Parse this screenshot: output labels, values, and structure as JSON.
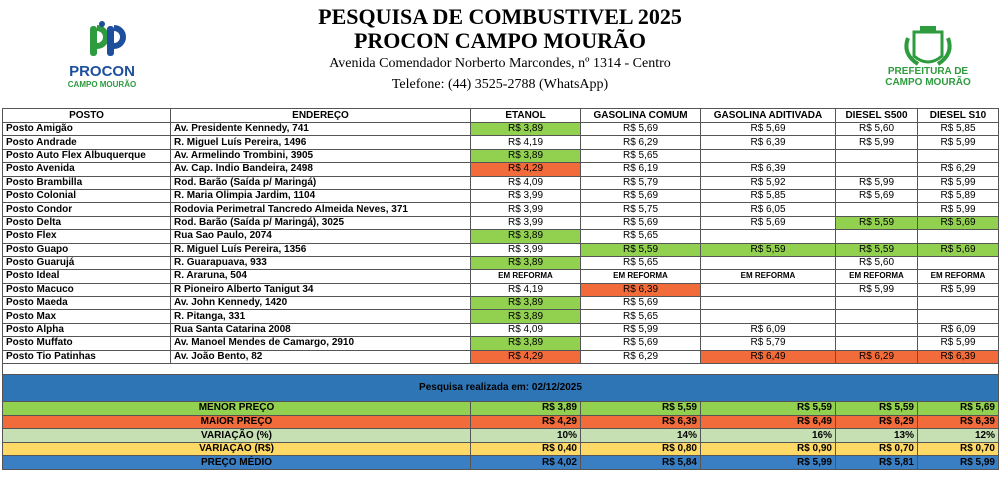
{
  "header": {
    "title": "PESQUISA DE COMBUSTIVEL 2025",
    "subtitle": "PROCON CAMPO MOURÃO",
    "address": "Avenida Comendador Norberto Marcondes, nº 1314 - Centro",
    "phone": "Telefone: (44) 3525-2788 (WhatsApp)"
  },
  "logos": {
    "procon": [
      "PROCON",
      "CAMPO MOURÃO"
    ],
    "prefeitura": [
      "PREFEITURA DE",
      "CAMPO MOURÃO"
    ]
  },
  "table": {
    "columns": [
      "POSTO",
      "ENDEREÇO",
      "ETANOL",
      "GASOLINA COMUM",
      "GASOLINA ADITIVADA",
      "DIESEL S500",
      "DIESEL S10"
    ],
    "rows": [
      {
        "posto": "Posto Amigão",
        "endereco": "Av. Presidente Kennedy, 741",
        "precos": [
          "R$ 3,89",
          "R$ 5,69",
          "R$ 5,69",
          "R$ 5,60",
          "R$ 5,85"
        ],
        "cores": [
          "#92d050",
          null,
          null,
          null,
          null
        ]
      },
      {
        "posto": "Posto Andrade",
        "endereco": "R. Miguel Luís Pereira, 1496",
        "precos": [
          "R$ 4,19",
          "R$ 6,29",
          "R$ 6,39",
          "R$ 5,99",
          "R$ 5,99"
        ],
        "cores": [
          null,
          null,
          null,
          null,
          null
        ]
      },
      {
        "posto": "Posto Auto Flex Albuquerque",
        "endereco": "Av. Armelindo Trombini, 3905",
        "precos": [
          "R$ 3,89",
          "R$ 5,65",
          null,
          null,
          null
        ],
        "cores": [
          "#92d050",
          null,
          null,
          null,
          null
        ]
      },
      {
        "posto": "Posto Avenida",
        "endereco": "Av. Cap. Índio Bandeira, 2498",
        "precos": [
          "R$ 4,29",
          "R$ 6,19",
          "R$ 6,39",
          null,
          "R$ 6,29"
        ],
        "cores": [
          "#f26b3a",
          null,
          null,
          null,
          null
        ]
      },
      {
        "posto": "Posto Brambilla",
        "endereco": "Rod. Barão (Saída p/ Maringá)",
        "precos": [
          "R$ 4,09",
          "R$ 5,79",
          "R$ 5,92",
          "R$ 5,99",
          "R$ 5,99"
        ],
        "cores": [
          null,
          null,
          null,
          null,
          null
        ]
      },
      {
        "posto": "Posto Colonial",
        "endereco": "R. Maria Olimpia Jardim, 1104",
        "precos": [
          "R$ 3,99",
          "R$ 5,69",
          "R$ 5,85",
          "R$ 5,69",
          "R$ 5,89"
        ],
        "cores": [
          null,
          null,
          null,
          null,
          null
        ]
      },
      {
        "posto": "Posto Condor",
        "endereco": "Rodovia Perimetral Tancredo Almeida Neves, 371",
        "precos": [
          "R$ 3,99",
          "R$ 5,75",
          "R$ 6,05",
          null,
          "R$ 5,99"
        ],
        "cores": [
          null,
          null,
          null,
          null,
          null
        ]
      },
      {
        "posto": "Posto Delta",
        "endereco": "Rod. Barão (Saída p/ Maringá), 3025",
        "precos": [
          "R$ 3,99",
          "R$ 5,69",
          "R$ 5,69",
          "R$ 5,59",
          "R$ 5,69"
        ],
        "cores": [
          null,
          null,
          null,
          "#92d050",
          "#92d050"
        ]
      },
      {
        "posto": "Posto Flex",
        "endereco": "Rua Sao Paulo, 2074",
        "precos": [
          "R$ 3,89",
          "R$ 5,65",
          null,
          null,
          null
        ],
        "cores": [
          "#92d050",
          null,
          null,
          null,
          null
        ]
      },
      {
        "posto": "Posto Guapo",
        "endereco": "R. Miguel Luís Pereira, 1356",
        "precos": [
          "R$ 3,99",
          "R$ 5,59",
          "R$ 5,59",
          "R$ 5,59",
          "R$ 5,69"
        ],
        "cores": [
          null,
          "#92d050",
          "#92d050",
          "#92d050",
          "#92d050"
        ]
      },
      {
        "posto": "Posto Guarujá",
        "endereco": "R. Guarapuava, 933",
        "precos": [
          "R$ 3,89",
          "R$ 5,65",
          null,
          "R$ 5,60",
          null
        ],
        "cores": [
          "#92d050",
          null,
          null,
          null,
          null
        ]
      },
      {
        "posto": "Posto Ideal",
        "endereco": "R. Araruna, 504",
        "precos": [
          "EM REFORMA",
          "EM REFORMA",
          "EM REFORMA",
          "EM REFORMA",
          "EM REFORMA"
        ],
        "cores": [
          null,
          null,
          null,
          null,
          null
        ]
      },
      {
        "posto": "Posto Macuco",
        "endereco": "R Pioneiro Alberto Tanigut 34",
        "precos": [
          "R$ 4,19",
          "R$ 6,39",
          null,
          "R$ 5,99",
          "R$ 5,99"
        ],
        "cores": [
          null,
          "#f26b3a",
          null,
          null,
          null
        ]
      },
      {
        "posto": "Posto Maeda",
        "endereco": "Av. John Kennedy, 1420",
        "precos": [
          "R$ 3,89",
          "R$ 5,69",
          null,
          null,
          null
        ],
        "cores": [
          "#92d050",
          null,
          null,
          null,
          null
        ]
      },
      {
        "posto": "Posto Max",
        "endereco": "R. Pitanga, 331",
        "precos": [
          "R$ 3,89",
          "R$ 5,65",
          null,
          null,
          null
        ],
        "cores": [
          "#92d050",
          null,
          null,
          null,
          null
        ]
      },
      {
        "posto": "Posto Alpha",
        "endereco": "Rua Santa Catarina 2008",
        "precos": [
          "R$ 4,09",
          "R$ 5,99",
          "R$ 6,09",
          null,
          "R$ 6,09"
        ],
        "cores": [
          null,
          null,
          null,
          null,
          null
        ]
      },
      {
        "posto": "Posto Muffato",
        "endereco": "Av. Manoel Mendes de Camargo, 2910",
        "precos": [
          "R$ 3,89",
          "R$ 5,69",
          "R$ 5,79",
          null,
          "R$ 5,99"
        ],
        "cores": [
          "#92d050",
          null,
          null,
          null,
          null
        ]
      },
      {
        "posto": "Posto Tio Patinhas",
        "endereco": "Av. João Bento, 82",
        "precos": [
          "R$ 4,29",
          "R$ 6,29",
          "R$ 6,49",
          "R$ 6,29",
          "R$ 6,39"
        ],
        "cores": [
          "#f26b3a",
          null,
          "#f26b3a",
          "#f26b3a",
          "#f26b3a"
        ]
      }
    ],
    "note": "Pesquisa realizada em: 02/12/2025",
    "summary": [
      {
        "label": "MENOR PREÇO",
        "color": "#92d050",
        "values": [
          "R$ 3,89",
          "R$ 5,59",
          "R$ 5,59",
          "R$ 5,59",
          "R$ 5,69"
        ]
      },
      {
        "label": "MAIOR PREÇO",
        "color": "#f26b3a",
        "values": [
          "R$ 4,29",
          "R$ 6,39",
          "R$ 6,49",
          "R$ 6,29",
          "R$ 6,39"
        ]
      },
      {
        "label": "VARIAÇÃO (%)",
        "color": "#c6e0b4",
        "values": [
          "10%",
          "14%",
          "16%",
          "13%",
          "12%"
        ]
      },
      {
        "label": "VARIAÇÃO (R$)",
        "color": "#ffd966",
        "values": [
          "R$ 0,40",
          "R$ 0,80",
          "R$ 0,90",
          "R$ 0,70",
          "R$ 0,70"
        ]
      },
      {
        "label": "PREÇO MÉDIO",
        "color": "#3a7fc4",
        "values": [
          "R$ 4,02",
          "R$ 5,84",
          "R$ 5,99",
          "R$ 5,81",
          "R$ 5,99"
        ]
      }
    ]
  }
}
